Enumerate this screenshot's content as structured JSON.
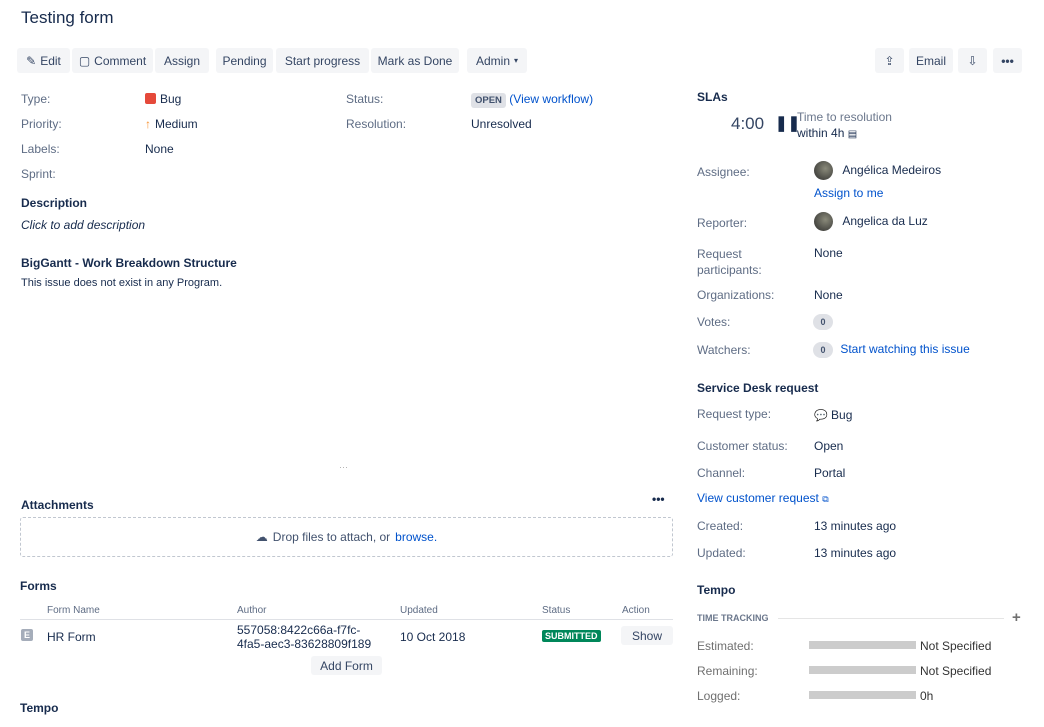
{
  "title": "Testing form",
  "toolbar": {
    "edit": "Edit",
    "comment": "Comment",
    "assign": "Assign",
    "pending": "Pending",
    "start_progress": "Start progress",
    "mark_done": "Mark as Done",
    "admin": "Admin",
    "email": "Email"
  },
  "details": {
    "type_label": "Type:",
    "type": "Bug",
    "priority_label": "Priority:",
    "priority": "Medium",
    "labels_label": "Labels:",
    "labels": "None",
    "sprint_label": "Sprint:",
    "status_label": "Status:",
    "status": "OPEN",
    "view_workflow": "(View workflow)",
    "resolution_label": "Resolution:",
    "resolution": "Unresolved"
  },
  "description": {
    "heading": "Description",
    "placeholder": "Click to add description"
  },
  "biggantt": {
    "heading": "BigGantt - Work Breakdown Structure",
    "text": "This issue does not exist in any Program."
  },
  "attachments": {
    "heading": "Attachments",
    "drop": "Drop files to attach, or",
    "browse": "browse."
  },
  "forms": {
    "heading": "Forms",
    "columns": [
      "Form Name",
      "Author",
      "Updated",
      "Status",
      "Action"
    ],
    "rows": [
      {
        "name": "HR Form",
        "author_line1": "557058:8422c66a-f7fc-",
        "author_line2": "4fa5-aec3-83628809f189",
        "updated": "10 Oct 2018",
        "status": "SUBMITTED",
        "action": "Show"
      }
    ],
    "add": "Add Form"
  },
  "tempo_left": "Tempo",
  "slas": {
    "heading": "SLAs",
    "time": "4:00",
    "name": "Time to resolution",
    "within": "within 4h"
  },
  "people": {
    "assignee_label": "Assignee:",
    "assignee": "Angélica Medeiros",
    "assign_to_me": "Assign to me",
    "reporter_label": "Reporter:",
    "reporter": "Angelica da Luz",
    "participants_label_1": "Request",
    "participants_label_2": "participants:",
    "participants": "None",
    "organizations_label": "Organizations:",
    "organizations": "None",
    "votes_label": "Votes:",
    "votes": "0",
    "watchers_label": "Watchers:",
    "watchers": "0",
    "watch": "Start watching this issue"
  },
  "service_desk": {
    "heading": "Service Desk request",
    "request_type_label": "Request type:",
    "request_type": "Bug",
    "customer_status_label": "Customer status:",
    "customer_status": "Open",
    "channel_label": "Channel:",
    "channel": "Portal",
    "view_request": "View customer request",
    "created_label": "Created:",
    "created": "13 minutes ago",
    "updated_label": "Updated:",
    "updated": "13 minutes ago"
  },
  "tempo": {
    "heading": "Tempo",
    "section": "TIME TRACKING",
    "estimated_label": "Estimated:",
    "estimated": "Not Specified",
    "remaining_label": "Remaining:",
    "remaining": "Not Specified",
    "logged_label": "Logged:",
    "logged": "0h"
  },
  "colors": {
    "link": "#0052cc",
    "submitted": "#00875a",
    "bug": "#e5493a",
    "priority": "#f79232"
  }
}
